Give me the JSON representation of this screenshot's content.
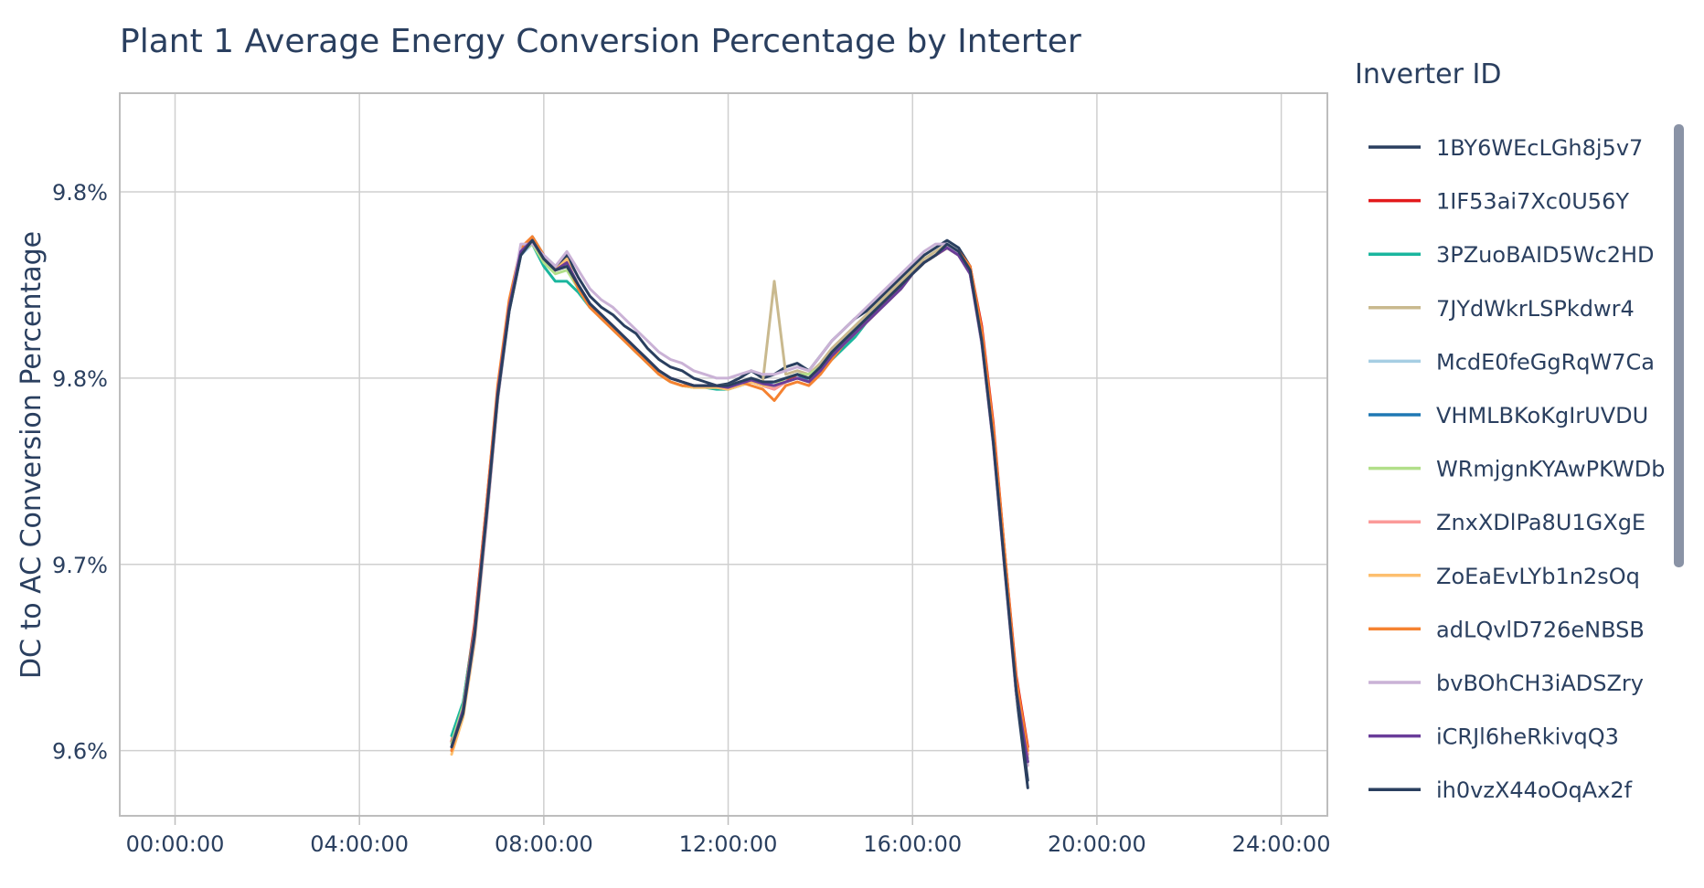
{
  "chart_data": {
    "type": "line",
    "title": "Plant 1 Average Energy Conversion Percentage by Interter",
    "xlabel": "",
    "ylabel": "DC to AC Conversion Percentage",
    "x_tick_labels": [
      "00:00:00",
      "04:00:00",
      "08:00:00",
      "12:00:00",
      "16:00:00",
      "20:00:00",
      "24:00:00"
    ],
    "x_tick_hours": [
      0,
      4,
      8,
      12,
      16,
      20,
      24
    ],
    "xlim_hours": [
      -1.2,
      25
    ],
    "y_tick_labels": [
      "9.8%",
      "9.8%",
      "9.7%",
      "9.6%"
    ],
    "y_tick_values": [
      9.8,
      9.75,
      9.7,
      9.65
    ],
    "ylim": [
      9.6325,
      9.8265
    ],
    "grid": true,
    "legend_title": "Inverter ID",
    "legend_position": "right",
    "x": [
      6.0,
      6.25,
      6.5,
      6.75,
      7.0,
      7.25,
      7.5,
      7.75,
      8.0,
      8.25,
      8.5,
      8.75,
      9.0,
      9.25,
      9.5,
      9.75,
      10.0,
      10.25,
      10.5,
      10.75,
      11.0,
      11.25,
      11.5,
      11.75,
      12.0,
      12.25,
      12.5,
      12.75,
      13.0,
      13.25,
      13.5,
      13.75,
      14.0,
      14.25,
      14.5,
      14.75,
      15.0,
      15.25,
      15.5,
      15.75,
      16.0,
      16.25,
      16.5,
      16.75,
      17.0,
      17.25,
      17.5,
      17.75,
      18.0,
      18.25,
      18.5
    ],
    "series": [
      {
        "name": "1BY6WEcLGh8j5v7",
        "color": "#2a3f5f",
        "values": [
          9.652,
          9.6615,
          9.682,
          9.712,
          9.745,
          9.768,
          9.783,
          9.788,
          9.783,
          9.78,
          9.783,
          9.777,
          9.772,
          9.769,
          9.767,
          9.764,
          9.762,
          9.758,
          9.755,
          9.753,
          9.752,
          9.75,
          9.749,
          9.748,
          9.7485,
          9.75,
          9.752,
          9.75,
          9.751,
          9.753,
          9.754,
          9.752,
          9.756,
          9.76,
          9.763,
          9.766,
          9.768,
          9.771,
          9.774,
          9.777,
          9.78,
          9.783,
          9.785,
          9.787,
          9.785,
          9.78,
          9.762,
          9.735,
          9.7,
          9.665,
          9.64
        ]
      },
      {
        "name": "1IF53ai7Xc0U56Y",
        "color": "#e31a1c",
        "values": [
          9.6525,
          9.6625,
          9.684,
          9.715,
          9.747,
          9.77,
          9.784,
          9.787,
          9.782,
          9.779,
          9.781,
          9.775,
          9.77,
          9.767,
          9.764,
          9.761,
          9.758,
          9.755,
          9.752,
          9.75,
          9.749,
          9.748,
          9.748,
          9.7475,
          9.747,
          9.748,
          9.749,
          9.748,
          9.747,
          9.749,
          9.751,
          9.75,
          9.753,
          9.757,
          9.76,
          9.763,
          9.766,
          9.769,
          9.772,
          9.775,
          9.778,
          9.781,
          9.783,
          9.785,
          9.784,
          9.78,
          9.764,
          9.738,
          9.703,
          9.67,
          9.651
        ]
      },
      {
        "name": "3PZuoBAID5Wc2HD",
        "color": "#1ab69e",
        "values": [
          9.654,
          9.663,
          9.683,
          9.714,
          9.746,
          9.769,
          9.784,
          9.786,
          9.78,
          9.776,
          9.776,
          9.773,
          9.769,
          9.766,
          9.763,
          9.76,
          9.757,
          9.754,
          9.751,
          9.749,
          9.748,
          9.7475,
          9.7475,
          9.747,
          9.747,
          9.748,
          9.749,
          9.748,
          9.748,
          9.749,
          9.75,
          9.749,
          9.752,
          9.755,
          9.758,
          9.761,
          9.765,
          9.768,
          9.771,
          9.774,
          9.778,
          9.781,
          9.783,
          9.785,
          9.783,
          9.779,
          9.761,
          9.735,
          9.701,
          9.668,
          9.649
        ]
      },
      {
        "name": "7JYdWkrLSPkdwr4",
        "color": "#c9b98e",
        "values": [
          9.651,
          9.661,
          9.682,
          9.713,
          9.746,
          9.769,
          9.784,
          9.787,
          9.782,
          9.779,
          9.78,
          9.775,
          9.77,
          9.767,
          9.764,
          9.761,
          9.758,
          9.755,
          9.752,
          9.75,
          9.749,
          9.748,
          9.748,
          9.748,
          9.748,
          9.749,
          9.75,
          9.749,
          9.776,
          9.751,
          9.752,
          9.751,
          9.754,
          9.758,
          9.761,
          9.764,
          9.767,
          9.77,
          9.773,
          9.776,
          9.779,
          9.782,
          9.784,
          9.786,
          9.784,
          9.779,
          9.761,
          9.734,
          9.7,
          9.667,
          9.648
        ]
      },
      {
        "name": "McdE0feGgRqW7Ca",
        "color": "#a6cee3",
        "values": [
          9.65,
          9.66,
          9.68,
          9.711,
          9.744,
          9.768,
          9.783,
          9.786,
          9.782,
          9.779,
          9.781,
          9.775,
          9.77,
          9.767,
          9.764,
          9.761,
          9.758,
          9.755,
          9.752,
          9.75,
          9.749,
          9.748,
          9.748,
          9.748,
          9.7475,
          9.7485,
          9.7495,
          9.7485,
          9.749,
          9.75,
          9.751,
          9.75,
          9.753,
          9.757,
          9.76,
          9.763,
          9.766,
          9.769,
          9.772,
          9.775,
          9.778,
          9.781,
          9.783,
          9.785,
          9.783,
          9.778,
          9.76,
          9.733,
          9.699,
          9.666,
          9.647
        ]
      },
      {
        "name": "VHMLBKoKgIrUVDU",
        "color": "#1f78b4",
        "values": [
          9.651,
          9.661,
          9.681,
          9.712,
          9.745,
          9.769,
          9.784,
          9.787,
          9.782,
          9.779,
          9.78,
          9.775,
          9.77,
          9.767,
          9.764,
          9.761,
          9.758,
          9.755,
          9.752,
          9.75,
          9.749,
          9.748,
          9.748,
          9.748,
          9.7475,
          9.7485,
          9.7495,
          9.7485,
          9.749,
          9.75,
          9.751,
          9.749,
          9.752,
          9.756,
          9.759,
          9.762,
          9.765,
          9.768,
          9.771,
          9.774,
          9.778,
          9.781,
          9.783,
          9.785,
          9.783,
          9.778,
          9.76,
          9.733,
          9.699,
          9.666,
          9.647
        ]
      },
      {
        "name": "WRmjgnKYAwPKWDb",
        "color": "#b2df8a",
        "values": [
          9.652,
          9.662,
          9.682,
          9.713,
          9.746,
          9.769,
          9.784,
          9.786,
          9.781,
          9.778,
          9.779,
          9.774,
          9.769,
          9.766,
          9.763,
          9.76,
          9.757,
          9.754,
          9.751,
          9.749,
          9.748,
          9.7475,
          9.7475,
          9.7475,
          9.747,
          9.748,
          9.749,
          9.748,
          9.748,
          9.75,
          9.751,
          9.751,
          9.753,
          9.756,
          9.759,
          9.762,
          9.765,
          9.769,
          9.772,
          9.775,
          9.778,
          9.781,
          9.783,
          9.785,
          9.783,
          9.778,
          9.76,
          9.733,
          9.699,
          9.666,
          9.647
        ]
      },
      {
        "name": "ZnxXDlPa8U1GXgE",
        "color": "#fb9a99",
        "values": [
          9.65,
          9.66,
          9.68,
          9.711,
          9.745,
          9.769,
          9.784,
          9.787,
          9.782,
          9.779,
          9.78,
          9.775,
          9.77,
          9.767,
          9.764,
          9.761,
          9.758,
          9.755,
          9.752,
          9.75,
          9.749,
          9.748,
          9.748,
          9.748,
          9.7475,
          9.7485,
          9.749,
          9.748,
          9.747,
          9.749,
          9.75,
          9.749,
          9.752,
          9.756,
          9.759,
          9.762,
          9.765,
          9.768,
          9.771,
          9.774,
          9.778,
          9.781,
          9.783,
          9.785,
          9.783,
          9.778,
          9.761,
          9.734,
          9.7,
          9.667,
          9.649
        ]
      },
      {
        "name": "ZoEaEvLYb1n2sOq",
        "color": "#fdbf6f",
        "values": [
          9.649,
          9.659,
          9.679,
          9.71,
          9.744,
          9.769,
          9.784,
          9.787,
          9.782,
          9.779,
          9.782,
          9.774,
          9.769,
          9.766,
          9.763,
          9.76,
          9.757,
          9.754,
          9.751,
          9.749,
          9.748,
          9.7475,
          9.7475,
          9.7475,
          9.747,
          9.748,
          9.749,
          9.748,
          9.748,
          9.749,
          9.75,
          9.749,
          9.752,
          9.756,
          9.759,
          9.762,
          9.765,
          9.768,
          9.771,
          9.774,
          9.778,
          9.781,
          9.783,
          9.785,
          9.783,
          9.779,
          9.762,
          9.735,
          9.701,
          9.668,
          9.646
        ]
      },
      {
        "name": "adLQvlD726eNBSB",
        "color": "#f58231",
        "values": [
          9.65,
          9.661,
          9.683,
          9.715,
          9.748,
          9.771,
          9.785,
          9.788,
          9.783,
          9.779,
          9.781,
          9.774,
          9.769,
          9.766,
          9.763,
          9.76,
          9.757,
          9.754,
          9.751,
          9.749,
          9.748,
          9.748,
          9.748,
          9.748,
          9.7475,
          9.749,
          9.748,
          9.747,
          9.744,
          9.748,
          9.749,
          9.748,
          9.751,
          9.755,
          9.759,
          9.762,
          9.765,
          9.768,
          9.772,
          9.775,
          9.778,
          9.781,
          9.783,
          9.785,
          9.784,
          9.78,
          9.763,
          9.737,
          9.703,
          9.669,
          9.65
        ]
      },
      {
        "name": "bvBOhCH3iADSZry",
        "color": "#cab2d6",
        "values": [
          9.651,
          9.66,
          9.68,
          9.71,
          9.744,
          9.768,
          9.786,
          9.786,
          9.783,
          9.78,
          9.784,
          9.779,
          9.774,
          9.771,
          9.769,
          9.766,
          9.763,
          9.76,
          9.757,
          9.755,
          9.754,
          9.752,
          9.751,
          9.75,
          9.75,
          9.751,
          9.752,
          9.751,
          9.751,
          9.752,
          9.753,
          9.752,
          9.756,
          9.76,
          9.763,
          9.766,
          9.769,
          9.772,
          9.775,
          9.778,
          9.781,
          9.784,
          9.786,
          9.786,
          9.783,
          9.778,
          9.759,
          9.732,
          9.698,
          9.665,
          9.646
        ]
      },
      {
        "name": "iCRJl6heRkivqQ3",
        "color": "#6a3d9a",
        "values": [
          9.651,
          9.661,
          9.682,
          9.713,
          9.746,
          9.769,
          9.784,
          9.787,
          9.782,
          9.779,
          9.781,
          9.775,
          9.77,
          9.767,
          9.764,
          9.761,
          9.758,
          9.755,
          9.752,
          9.75,
          9.749,
          9.748,
          9.748,
          9.748,
          9.7475,
          9.7485,
          9.7495,
          9.7485,
          9.748,
          9.749,
          9.75,
          9.749,
          9.752,
          9.756,
          9.759,
          9.762,
          9.765,
          9.768,
          9.771,
          9.774,
          9.778,
          9.781,
          9.783,
          9.785,
          9.783,
          9.778,
          9.76,
          9.733,
          9.699,
          9.666,
          9.647
        ]
      },
      {
        "name": "ih0vzX44oOqAx2f",
        "color": "#2a3f5f",
        "values": [
          9.651,
          9.66,
          9.681,
          9.712,
          9.745,
          9.768,
          9.783,
          9.787,
          9.782,
          9.779,
          9.78,
          9.775,
          9.77,
          9.767,
          9.764,
          9.761,
          9.758,
          9.755,
          9.752,
          9.75,
          9.749,
          9.748,
          9.748,
          9.748,
          9.748,
          9.749,
          9.75,
          9.749,
          9.749,
          9.75,
          9.751,
          9.75,
          9.753,
          9.757,
          9.76,
          9.763,
          9.766,
          9.769,
          9.772,
          9.775,
          9.778,
          9.781,
          9.783,
          9.786,
          9.784,
          9.779,
          9.76,
          9.733,
          9.699,
          9.666,
          9.642
        ]
      }
    ]
  }
}
